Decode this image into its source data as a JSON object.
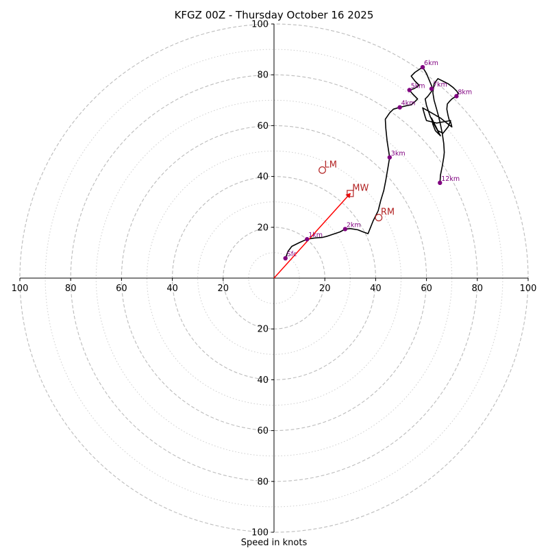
{
  "chart_data": {
    "type": "hodograph",
    "title": "KFGZ 00Z - Thursday October 16 2025",
    "xlabel": "Speed in knots",
    "units": "knots",
    "range": [
      -100,
      100
    ],
    "ring_speeds_dashed": [
      20,
      40,
      60,
      80,
      100
    ],
    "ring_speeds_dotted": [
      10,
      30,
      50,
      70,
      90
    ],
    "tick_values": [
      20,
      40,
      60,
      80,
      100
    ],
    "tick_labels": [
      "20",
      "40",
      "60",
      "80",
      "100"
    ],
    "grid": true,
    "colors": {
      "trace": "#000000",
      "height_marker": "#800080",
      "motion": "#b22222",
      "mean_wind_vector": "#ff0000",
      "ring_dashed": "#bbbbbb",
      "ring_dotted": "#cccccc"
    },
    "trace": [
      [
        4.5,
        7.8
      ],
      [
        5.5,
        10.5
      ],
      [
        7,
        12.5
      ],
      [
        10,
        14
      ],
      [
        13,
        15.3
      ],
      [
        16,
        15.8
      ],
      [
        19,
        16
      ],
      [
        21,
        16.5
      ],
      [
        23,
        17.2
      ],
      [
        26,
        18.2
      ],
      [
        28,
        19.3
      ],
      [
        30,
        19.5
      ],
      [
        33,
        19
      ],
      [
        35,
        18.2
      ],
      [
        37,
        17.5
      ],
      [
        38,
        20
      ],
      [
        39,
        22.5
      ],
      [
        40.5,
        25.5
      ],
      [
        41,
        26.5
      ],
      [
        42,
        30.5
      ],
      [
        43.2,
        34.5
      ],
      [
        44,
        38.5
      ],
      [
        44.5,
        41.5
      ],
      [
        45,
        44.5
      ],
      [
        45.5,
        47.5
      ],
      [
        44.5,
        54
      ],
      [
        44,
        59
      ],
      [
        43.8,
        62.5
      ],
      [
        45.5,
        65
      ],
      [
        47,
        66.5
      ],
      [
        49.5,
        67.2
      ],
      [
        52,
        67.8
      ],
      [
        54,
        68.2
      ],
      [
        55.5,
        69.5
      ],
      [
        56.5,
        70.5
      ],
      [
        54.5,
        72.5
      ],
      [
        53.3,
        74
      ],
      [
        55,
        74.5
      ],
      [
        56.5,
        75.3
      ],
      [
        57,
        76
      ],
      [
        55.5,
        77.5
      ],
      [
        54,
        79.5
      ],
      [
        55.5,
        81
      ],
      [
        58.5,
        83
      ],
      [
        60,
        80.5
      ],
      [
        62.5,
        74.5
      ],
      [
        62,
        73.5
      ],
      [
        60.5,
        71.5
      ],
      [
        59.5,
        70.5
      ],
      [
        60,
        68
      ],
      [
        61.5,
        63.5
      ],
      [
        63,
        60.5
      ],
      [
        65.5,
        56
      ],
      [
        63.5,
        58
      ],
      [
        62.5,
        60.5
      ],
      [
        62,
        63
      ],
      [
        64.5,
        58
      ],
      [
        66.5,
        57
      ],
      [
        68.5,
        59.5
      ],
      [
        69.5,
        62
      ],
      [
        64,
        61
      ],
      [
        60,
        62
      ],
      [
        59.5,
        63.5
      ],
      [
        58.5,
        67
      ],
      [
        62,
        65
      ],
      [
        65.5,
        63
      ],
      [
        68,
        61
      ],
      [
        70,
        59.5
      ],
      [
        69.5,
        61.5
      ],
      [
        69,
        62
      ],
      [
        68.5,
        64
      ],
      [
        68,
        66.5
      ],
      [
        68.2,
        68.5
      ],
      [
        69,
        69.5
      ],
      [
        70,
        70.5
      ],
      [
        71.5,
        71.5
      ],
      [
        72.5,
        72.5
      ],
      [
        72,
        73.5
      ],
      [
        70.5,
        75
      ],
      [
        68.5,
        76.5
      ],
      [
        66.5,
        77.5
      ],
      [
        64.5,
        78.5
      ],
      [
        63,
        76.5
      ],
      [
        62.5,
        73
      ],
      [
        63,
        70
      ],
      [
        64,
        66.5
      ],
      [
        64.8,
        63.5
      ],
      [
        65.5,
        60.5
      ],
      [
        66.2,
        57
      ],
      [
        66.8,
        53
      ],
      [
        67,
        49.5
      ],
      [
        66.8,
        47.5
      ],
      [
        66.2,
        44
      ],
      [
        65.5,
        40.5
      ],
      [
        65.3,
        37.5
      ]
    ],
    "height_markers": [
      {
        "label": "Sfc",
        "x": 4.5,
        "y": 7.8
      },
      {
        "label": "1km",
        "x": 13,
        "y": 15.3
      },
      {
        "label": "2km",
        "x": 28,
        "y": 19.3
      },
      {
        "label": "3km",
        "x": 45.5,
        "y": 47.5
      },
      {
        "label": "4km",
        "x": 49.5,
        "y": 67.2
      },
      {
        "label": "5km",
        "x": 53.3,
        "y": 74
      },
      {
        "label": "6km",
        "x": 58.5,
        "y": 83
      },
      {
        "label": "7km",
        "x": 62,
        "y": 74.5
      },
      {
        "label": "8km",
        "x": 71.8,
        "y": 71.6
      },
      {
        "label": "12km",
        "x": 65.3,
        "y": 37.5
      }
    ],
    "storm_motions": [
      {
        "label": "LM",
        "x": 19,
        "y": 42.5,
        "symbol": "circle"
      },
      {
        "label": "RM",
        "x": 41.2,
        "y": 23.8,
        "symbol": "circle"
      },
      {
        "label": "MW",
        "x": 30,
        "y": 33.3,
        "symbol": "square"
      }
    ],
    "mean_wind_vector": {
      "from": [
        0,
        0
      ],
      "to": [
        30,
        33.3
      ]
    }
  }
}
